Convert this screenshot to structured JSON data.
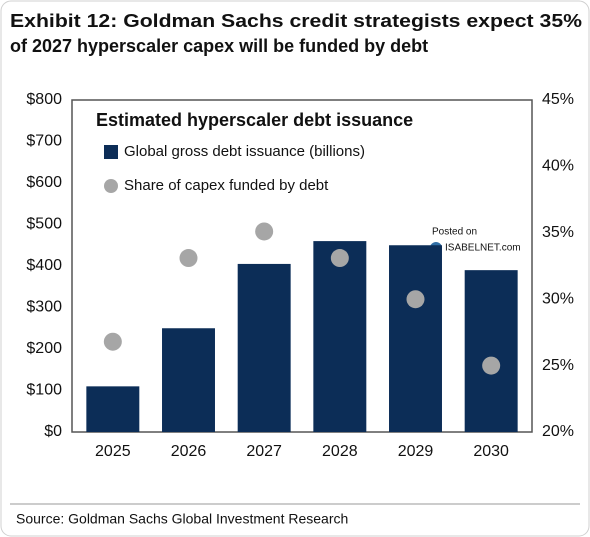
{
  "chart_data": {
    "type": "bar",
    "title": [
      "Exhibit 12: Goldman Sachs credit strategists expect 35%",
      "of 2027 hyperscaler capex will be funded by debt"
    ],
    "chart_title": "Estimated hyperscaler debt issuance",
    "categories": [
      "2025",
      "2026",
      "2027",
      "2028",
      "2029",
      "2030"
    ],
    "series": [
      {
        "name": "Global gross debt issuance (billions)",
        "kind": "bar",
        "color": "#0c2d57",
        "values": [
          110,
          250,
          405,
          460,
          450,
          390
        ]
      },
      {
        "name": "Share of capex funded by debt",
        "kind": "scatter",
        "color": "#a6a6a6",
        "axis": "y2",
        "values": [
          26.8,
          33.1,
          35.1,
          33.1,
          30,
          25
        ]
      }
    ],
    "ylim": [
      0,
      800
    ],
    "yticks": [
      {
        "value": 0,
        "label": "$0"
      },
      {
        "value": 100,
        "label": "$100"
      },
      {
        "value": 200,
        "label": "$200"
      },
      {
        "value": 300,
        "label": "$300"
      },
      {
        "value": 400,
        "label": "$400"
      },
      {
        "value": 500,
        "label": "$500"
      },
      {
        "value": 600,
        "label": "$600"
      },
      {
        "value": 700,
        "label": "$700"
      },
      {
        "value": 800,
        "label": "$800"
      }
    ],
    "y2lim": [
      20,
      45
    ],
    "y2ticks": [
      {
        "value": 20,
        "label": "20%"
      },
      {
        "value": 25,
        "label": "25%"
      },
      {
        "value": 30,
        "label": "30%"
      },
      {
        "value": 35,
        "label": "35%"
      },
      {
        "value": 40,
        "label": "40%"
      },
      {
        "value": 45,
        "label": "45%"
      }
    ],
    "watermark": [
      "Posted on",
      "ISABELNET.com"
    ],
    "source": "Source: Goldman Sachs Global Investment Research"
  }
}
